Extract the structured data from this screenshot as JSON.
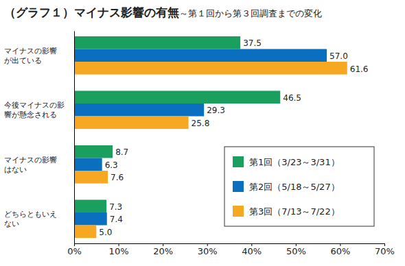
{
  "chart_data": {
    "type": "bar",
    "orientation": "horizontal",
    "title": "（グラフ１）マイナス影響の有無",
    "subtitle": "～第１回から第３回調査までの変化",
    "categories": [
      "マイナスの影響\nが出ている",
      "今後マイナスの影\n響が懸念される",
      "マイナスの影響\nはない",
      "どちらともいえ\nない"
    ],
    "series": [
      {
        "name": "第1回（3/23～3/31）",
        "color": "#1a9f5f",
        "values": [
          37.5,
          46.5,
          8.7,
          7.3
        ],
        "value_labels": [
          "37.5",
          "46.5",
          "8.7",
          "7.3"
        ]
      },
      {
        "name": "第2回（5/18～5/27）",
        "color": "#0b6fc0",
        "values": [
          57.0,
          29.3,
          6.3,
          7.4
        ],
        "value_labels": [
          "57.0",
          "29.3",
          "6.3",
          "7.4"
        ]
      },
      {
        "name": "第3回（7/13～7/22）",
        "color": "#f7a823",
        "values": [
          61.6,
          25.8,
          7.6,
          5.0
        ],
        "value_labels": [
          "61.6",
          "25.8",
          "7.6",
          "5.0"
        ]
      }
    ],
    "xlim": [
      0,
      70
    ],
    "xticks": [
      {
        "value": 0,
        "label": "0%"
      },
      {
        "value": 10,
        "label": "10%"
      },
      {
        "value": 20,
        "label": "20%"
      },
      {
        "value": 30,
        "label": "30%"
      },
      {
        "value": 40,
        "label": "40%"
      },
      {
        "value": 50,
        "label": "50%"
      },
      {
        "value": 60,
        "label": "60%"
      },
      {
        "value": 70,
        "label": "70%"
      }
    ],
    "grid": false,
    "data_labels": true,
    "legend": "lower right"
  }
}
